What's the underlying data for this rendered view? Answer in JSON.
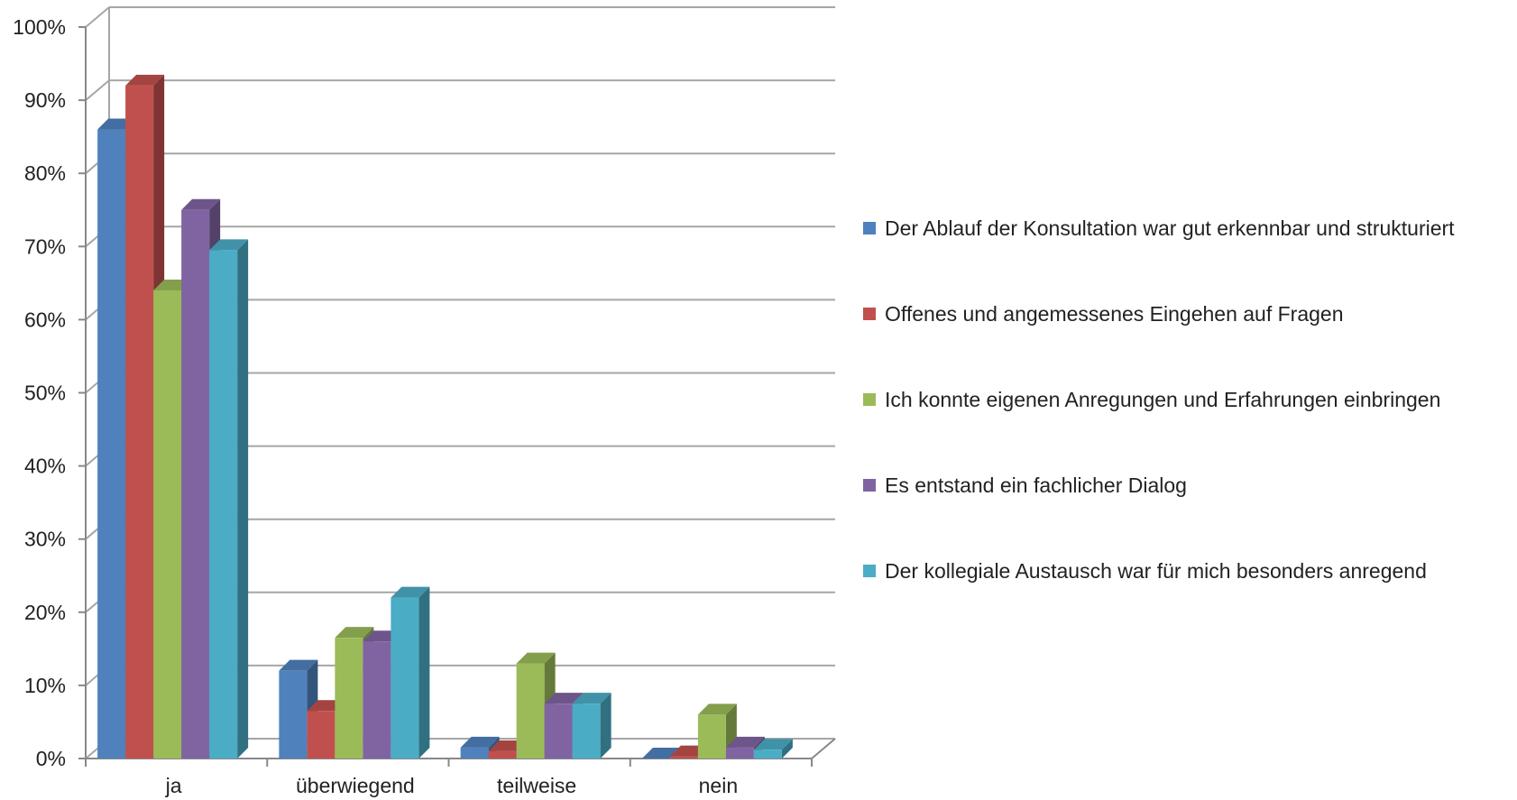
{
  "chart_data": {
    "type": "bar",
    "categories": [
      "ja",
      "überwiegend",
      "teilweise",
      "nein"
    ],
    "series": [
      {
        "name": "Der Ablauf der Konsultation war gut erkennbar und strukturiert",
        "values": [
          86,
          12,
          1.5,
          0
        ],
        "color": "#4F81BD"
      },
      {
        "name": "Offenes und angemessenes Eingehen auf Fragen",
        "values": [
          92,
          6.5,
          1,
          0.3
        ],
        "color": "#C0504D"
      },
      {
        "name": "Ich konnte eigenen Anregungen und Erfahrungen einbringen",
        "values": [
          64,
          16.5,
          13,
          6
        ],
        "color": "#9BBB59"
      },
      {
        "name": "Es entstand ein fachlicher Dialog",
        "values": [
          75,
          16,
          7.5,
          1.5
        ],
        "color": "#8064A2"
      },
      {
        "name": "Der kollegiale Austausch war für mich besonders anregend",
        "values": [
          69.5,
          22,
          7.5,
          1.2
        ],
        "color": "#4BACC6"
      }
    ],
    "y_ticks": [
      "0%",
      "10%",
      "20%",
      "30%",
      "40%",
      "50%",
      "60%",
      "70%",
      "80%",
      "90%",
      "100%"
    ],
    "ylim": [
      0,
      100
    ],
    "grid": true,
    "legend_position": "right",
    "title": "",
    "xlabel": "",
    "ylabel": ""
  }
}
